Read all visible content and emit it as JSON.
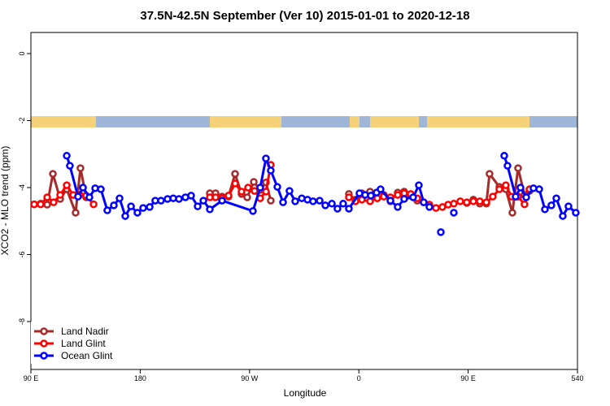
{
  "chart_data": {
    "type": "line",
    "title": "37.5N-42.5N September (Ver 10)   2015-01-01 to 2020-12-18",
    "x_label": "Longitude",
    "y_label": "XCO2 - MLO trend (ppm)",
    "xlim": [
      90,
      540
    ],
    "ylim": [
      -9.43,
      0.63
    ],
    "xticks": [
      {
        "value": 90,
        "label": "90 E"
      },
      180,
      {
        "value": 270,
        "label": "90 W"
      },
      {
        "value": 360,
        "label": "0"
      },
      {
        "value": 450,
        "label": "90 E"
      },
      540
    ],
    "yticks": [
      0,
      -2,
      -4,
      -6,
      -8
    ],
    "legend": "bottom-left",
    "series": [
      {
        "name": "Land Nadir",
        "color": "#a52a2a",
        "x": [
          92.7,
          98.0,
          103.4,
          108.1,
          114.1,
          119.5,
          126.8,
          130.8,
          135.5,
          null,
          237.3,
          242.0,
          247.4,
          252.7,
          258.1,
          263.4,
          268.1,
          273.5,
          278.8,
          283.5,
          287.5,
          null,
          351.8,
          357.2,
          362.5,
          369.2,
          375.2,
          380.6,
          386.0,
          392.0,
          397.3,
          402.7,
          408.1,
          null,
          448.9,
          454.3,
          459.6,
          465.0,
          467.6,
          475.7,
          481.0,
          486.4,
          491.1,
          496.4,
          500.5
        ],
        "values": [
          -4.5,
          -4.48,
          -4.51,
          -3.59,
          -4.34,
          -4.05,
          -4.75,
          -3.42,
          -4.29,
          null,
          -4.17,
          -4.17,
          -4.27,
          -4.27,
          -3.59,
          -4.19,
          -4.29,
          -3.83,
          -4.07,
          -3.85,
          -4.39,
          null,
          -4.19,
          -4.36,
          -4.17,
          -4.12,
          -4.32,
          -4.22,
          -4.41,
          -4.15,
          -4.12,
          -4.24,
          -4.39,
          null,
          -4.46,
          -4.36,
          -4.48,
          -4.48,
          -3.59,
          -3.98,
          -4.05,
          -4.75,
          -3.42,
          -4.22,
          -4.1
        ]
      },
      {
        "name": "Land Glint",
        "color": "#ff0000",
        "x": [
          92.7,
          98.0,
          103.4,
          108.7,
          114.1,
          119.5,
          124.8,
          130.2,
          135.5,
          141.6,
          null,
          237.3,
          242.0,
          247.4,
          252.7,
          258.1,
          263.4,
          268.8,
          274.1,
          278.8,
          283.5,
          287.5,
          null,
          351.8,
          357.2,
          362.5,
          369.2,
          375.2,
          380.6,
          386.0,
          392.0,
          397.3,
          402.7,
          408.1,
          413.4,
          418.1,
          423.5,
          428.8,
          433.5,
          438.2,
          443.5,
          448.9,
          454.3,
          459.6,
          465.0,
          470.3,
          475.7,
          481.0,
          485.7,
          491.1,
          496.4,
          500.5
        ],
        "values": [
          -4.5,
          -4.5,
          -4.29,
          -4.44,
          -4.22,
          -3.93,
          -4.22,
          -4.22,
          -4.24,
          -4.5,
          null,
          -4.29,
          -4.29,
          -4.32,
          -4.24,
          -3.88,
          -4.12,
          -4.0,
          -4.1,
          -4.32,
          -4.12,
          -3.32,
          null,
          -4.29,
          -4.41,
          -4.36,
          -4.41,
          -4.32,
          -4.27,
          -4.29,
          -4.22,
          -4.17,
          -4.19,
          -4.32,
          -4.44,
          -4.51,
          -4.61,
          -4.58,
          -4.51,
          -4.48,
          -4.41,
          -4.44,
          -4.41,
          -4.41,
          -4.44,
          -4.27,
          -4.05,
          -3.93,
          -4.27,
          -4.27,
          -4.5,
          -4.05
        ]
      },
      {
        "name": "Ocean Glint",
        "color": "#0000ff",
        "x": [
          119.5,
          122.1,
          128.8,
          132.9,
          138.2,
          142.9,
          147.6,
          152.9,
          158.3,
          163.0,
          167.7,
          172.4,
          177.7,
          182.4,
          187.8,
          192.4,
          197.1,
          202.5,
          207.2,
          211.9,
          217.2,
          221.9,
          227.3,
          232.0,
          237.3,
          247.4,
          272.8,
          278.8,
          283.5,
          287.5,
          292.9,
          297.6,
          302.9,
          307.6,
          313.0,
          317.7,
          322.3,
          327.7,
          332.4,
          337.8,
          342.4,
          347.1,
          351.8,
          360.5,
          365.2,
          369.9,
          374.6,
          377.9,
          386.0,
          392.0,
          397.3,
          404.7,
          409.4,
          413.4,
          418.1,
          null,
          427.5,
          null,
          438.2,
          null,
          479.7,
          482.4,
          489.1,
          493.1,
          497.8,
          503.8,
          508.5,
          513.2,
          518.5,
          522.6,
          527.9,
          532.6,
          538.6
        ],
        "values": [
          -3.05,
          -3.35,
          -4.27,
          -4.0,
          -4.29,
          -4.02,
          -4.05,
          -4.68,
          -4.53,
          -4.32,
          -4.85,
          -4.56,
          -4.75,
          -4.61,
          -4.58,
          -4.39,
          -4.39,
          -4.34,
          -4.32,
          -4.34,
          -4.29,
          -4.24,
          -4.56,
          -4.39,
          -4.65,
          -4.39,
          -4.7,
          -4.0,
          -3.13,
          -3.49,
          -3.98,
          -4.44,
          -4.1,
          -4.41,
          -4.32,
          -4.36,
          -4.41,
          -4.39,
          -4.53,
          -4.48,
          -4.63,
          -4.48,
          -4.63,
          -4.17,
          -4.22,
          -4.24,
          -4.15,
          -4.05,
          -4.39,
          -4.58,
          -4.34,
          -4.29,
          -3.93,
          -4.44,
          -4.58,
          null,
          -5.33,
          null,
          -4.75,
          null,
          -3.05,
          -3.35,
          -4.27,
          -4.0,
          -4.29,
          -4.02,
          -4.05,
          -4.65,
          -4.53,
          -4.32,
          -4.85,
          -4.56,
          -4.75
        ]
      }
    ]
  }
}
